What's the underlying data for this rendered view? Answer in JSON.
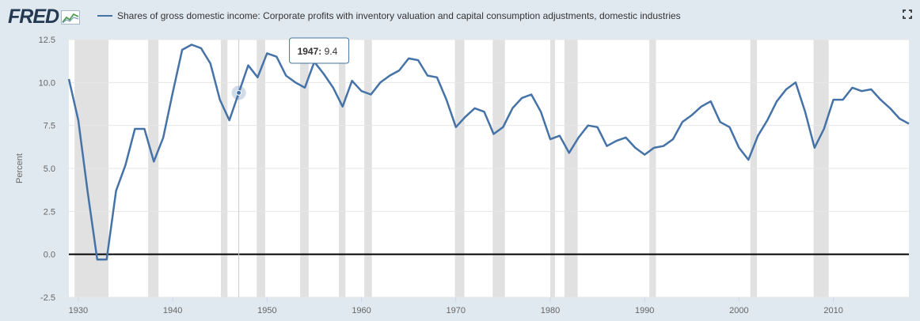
{
  "header": {
    "logo_text": "FRED",
    "legend_label": "Shares of gross domestic income: Corporate profits with inventory valuation and capital consumption adjustments, domestic industries"
  },
  "icons": {
    "logo_graph": "fred-graph-icon",
    "fullscreen": "fullscreen-icon"
  },
  "colors": {
    "series": "#4572a7",
    "recession": "#e1e1e1",
    "background": "#e1e9f0",
    "zero_line": "#000000"
  },
  "tooltip": {
    "year": "1947:",
    "value": "9.4"
  },
  "chart_data": {
    "type": "line",
    "ylabel": "Percent",
    "xlim": [
      1929,
      2018
    ],
    "ylim": [
      -2.5,
      12.5
    ],
    "yticks": [
      -2.5,
      0.0,
      2.5,
      5.0,
      7.5,
      10.0,
      12.5
    ],
    "ytick_labels": [
      "-2.5",
      "0.0",
      "2.5",
      "5.0",
      "7.5",
      "10.0",
      "12.5"
    ],
    "xticks": [
      1930,
      1940,
      1950,
      1960,
      1970,
      1980,
      1990,
      2000,
      2010
    ],
    "xtick_labels": [
      "1930",
      "1940",
      "1950",
      "1960",
      "1970",
      "1980",
      "1990",
      "2000",
      "2010"
    ],
    "grid": "horizontal",
    "recessions": [
      [
        1929.6,
        1933.2
      ],
      [
        1937.4,
        1938.5
      ],
      [
        1945.1,
        1945.8
      ],
      [
        1948.9,
        1949.8
      ],
      [
        1953.5,
        1954.4
      ],
      [
        1957.6,
        1958.3
      ],
      [
        1960.3,
        1961.1
      ],
      [
        1969.9,
        1970.9
      ],
      [
        1973.9,
        1975.2
      ],
      [
        1980.0,
        1980.5
      ],
      [
        1981.5,
        1982.9
      ],
      [
        1990.5,
        1991.2
      ],
      [
        2001.2,
        2001.9
      ],
      [
        2007.9,
        2009.5
      ]
    ],
    "series": [
      {
        "name": "Shares of gross domestic income: Corporate profits with inventory valuation and capital consumption adjustments, domestic industries",
        "x": [
          1929,
          1930,
          1931,
          1932,
          1933,
          1934,
          1935,
          1936,
          1937,
          1938,
          1939,
          1940,
          1941,
          1942,
          1943,
          1944,
          1945,
          1946,
          1947,
          1948,
          1949,
          1950,
          1951,
          1952,
          1953,
          1954,
          1955,
          1956,
          1957,
          1958,
          1959,
          1960,
          1961,
          1962,
          1963,
          1964,
          1965,
          1966,
          1967,
          1968,
          1969,
          1970,
          1971,
          1972,
          1973,
          1974,
          1975,
          1976,
          1977,
          1978,
          1979,
          1980,
          1981,
          1982,
          1983,
          1984,
          1985,
          1986,
          1987,
          1988,
          1989,
          1990,
          1991,
          1992,
          1993,
          1994,
          1995,
          1996,
          1997,
          1998,
          1999,
          2000,
          2001,
          2002,
          2003,
          2004,
          2005,
          2006,
          2007,
          2008,
          2009,
          2010,
          2011,
          2012,
          2013,
          2014,
          2015,
          2016,
          2017,
          2018
        ],
        "y": [
          10.2,
          7.8,
          3.6,
          -0.3,
          -0.3,
          3.7,
          5.2,
          7.3,
          7.3,
          5.4,
          6.8,
          9.4,
          11.9,
          12.2,
          12.0,
          11.1,
          9.0,
          7.8,
          9.4,
          11.0,
          10.3,
          11.7,
          11.5,
          10.4,
          10.0,
          9.7,
          11.2,
          10.5,
          9.7,
          8.6,
          10.1,
          9.5,
          9.3,
          10.0,
          10.4,
          10.7,
          11.4,
          11.3,
          10.4,
          10.3,
          9.0,
          7.4,
          8.0,
          8.5,
          8.3,
          7.0,
          7.4,
          8.5,
          9.1,
          9.3,
          8.3,
          6.7,
          6.9,
          5.9,
          6.8,
          7.5,
          7.4,
          6.3,
          6.6,
          6.8,
          6.2,
          5.8,
          6.2,
          6.3,
          6.7,
          7.7,
          8.1,
          8.6,
          8.9,
          7.7,
          7.4,
          6.2,
          5.5,
          6.9,
          7.8,
          8.9,
          9.6,
          10.0,
          8.3,
          6.2,
          7.3,
          9.0,
          9.0,
          9.7,
          9.5,
          9.6,
          9.0,
          8.5,
          7.9,
          7.6
        ]
      }
    ]
  }
}
